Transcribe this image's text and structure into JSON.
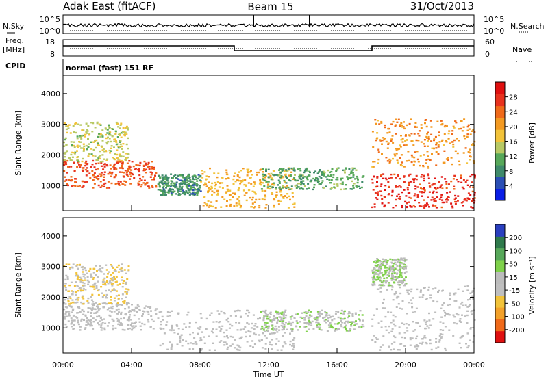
{
  "header": {
    "radar": "Adak East (fitACF)",
    "beam": "Beam 15",
    "date": "31/Oct/2013"
  },
  "sky_panel": {
    "left_label": "N.Sky",
    "right_label": "N.Search",
    "left_ticks": [
      "10^5",
      "10^0"
    ],
    "right_ticks": [
      "10^5",
      "10^0"
    ]
  },
  "freq_panel": {
    "left_label_1": "Freq.",
    "left_label_2": "[MHz]",
    "right_label": "Nave",
    "left_ticks": [
      "18",
      "8"
    ],
    "right_ticks": [
      "60",
      "0"
    ]
  },
  "cpid": {
    "label": "CPID",
    "text": "normal (fast) 151 RF"
  },
  "x_axis": {
    "label": "Time UT",
    "ticks": [
      "00:00",
      "04:00",
      "08:00",
      "12:00",
      "16:00",
      "20:00",
      "00:00"
    ]
  },
  "colors": {
    "power": [
      "#0a1ee6",
      "#2b4fb5",
      "#3f8a6b",
      "#57a85a",
      "#b8c964",
      "#f2c33a",
      "#f39a22",
      "#f06a1a",
      "#e8321e",
      "#e01010"
    ],
    "velocity": [
      "#e01010",
      "#f06a1a",
      "#f3a12a",
      "#f2c33a",
      "#bfbfbf",
      "#bcbcbc",
      "#7fd14a",
      "#57a85a",
      "#2f7a4c",
      "#2a3fbf"
    ]
  },
  "chart_data": [
    {
      "type": "heatmap",
      "title": "",
      "xlabel": "Time UT",
      "ylabel": "Slant Range [km]",
      "x_ticks": [
        "00:00",
        "04:00",
        "08:00",
        "12:00",
        "16:00",
        "20:00",
        "00:00"
      ],
      "xlim_hours": [
        0,
        24
      ],
      "y_ticks": [
        1000,
        2000,
        3000,
        4000
      ],
      "ylim": [
        180,
        4600
      ],
      "colorbar": {
        "label": "Power [dB]",
        "ticks": [
          "4",
          "8",
          "12",
          "16",
          "20",
          "24",
          "28"
        ],
        "range": [
          0,
          30
        ]
      },
      "echo_regions": [
        {
          "t_start": 0.0,
          "t_end": 5.4,
          "range_start": 950,
          "range_end": 1850,
          "value": 24
        },
        {
          "t_start": 0.0,
          "t_end": 3.8,
          "range_start": 1800,
          "range_end": 3100,
          "value": 14
        },
        {
          "t_start": 5.5,
          "t_end": 8.0,
          "range_start": 700,
          "range_end": 1400,
          "value": 8
        },
        {
          "t_start": 8.0,
          "t_end": 13.5,
          "range_start": 300,
          "range_end": 1600,
          "value": 18
        },
        {
          "t_start": 11.5,
          "t_end": 17.5,
          "range_start": 900,
          "range_end": 1600,
          "value": 10
        },
        {
          "t_start": 18.0,
          "t_end": 24.0,
          "range_start": 300,
          "range_end": 1400,
          "value": 26
        },
        {
          "t_start": 18.0,
          "t_end": 24.0,
          "range_start": 1600,
          "range_end": 3200,
          "value": 20
        }
      ]
    },
    {
      "type": "heatmap",
      "title": "",
      "xlabel": "Time UT",
      "ylabel": "Slant Range [km]",
      "x_ticks": [
        "00:00",
        "04:00",
        "08:00",
        "12:00",
        "16:00",
        "20:00",
        "00:00"
      ],
      "xlim_hours": [
        0,
        24
      ],
      "y_ticks": [
        1000,
        2000,
        3000,
        4000
      ],
      "ylim": [
        180,
        4600
      ],
      "colorbar": {
        "label": "Velocity [m s⁻¹]",
        "ticks": [
          "-200",
          "-100",
          "-50",
          "-15",
          "15",
          "50",
          "100",
          "200"
        ],
        "range": [
          -250,
          250
        ]
      },
      "echo_regions": [
        {
          "t_start": 0.0,
          "t_end": 5.4,
          "range_start": 950,
          "range_end": 1850,
          "value": 0
        },
        {
          "t_start": 0.0,
          "t_end": 3.8,
          "range_start": 1800,
          "range_end": 3100,
          "value": -40
        },
        {
          "t_start": 5.5,
          "t_end": 13.5,
          "range_start": 300,
          "range_end": 1600,
          "value": 0
        },
        {
          "t_start": 11.5,
          "t_end": 17.5,
          "range_start": 900,
          "range_end": 1600,
          "value": 40
        },
        {
          "t_start": 18.0,
          "t_end": 24.0,
          "range_start": 300,
          "range_end": 2400,
          "value": 0
        },
        {
          "t_start": 18.0,
          "t_end": 20.0,
          "range_start": 2400,
          "range_end": 3300,
          "value": 40
        }
      ]
    }
  ]
}
